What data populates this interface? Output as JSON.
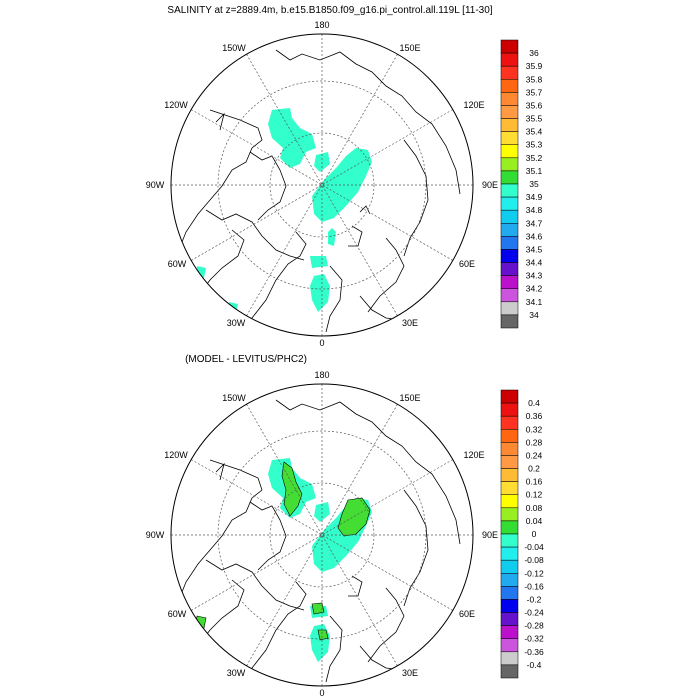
{
  "chart_data": [
    {
      "type": "heatmap",
      "projection": "north-polar-stereographic",
      "title": "SALINITY at z=2889.4m, b.e15.B1850.f09_g16.pi_control.all.119L [11-30]",
      "lon_labels": {
        "180": "180",
        "150E": "150E",
        "120E": "120E",
        "90E": "90E",
        "60E": "60E",
        "30E": "30E",
        "0": "0",
        "30W": "30W",
        "60W": "60W",
        "90W": "90W",
        "120W": "120W",
        "150W": "150W"
      },
      "colorbar": {
        "levels": [
          "36",
          "35.9",
          "35.8",
          "35.7",
          "35.6",
          "35.5",
          "35.4",
          "35.3",
          "35.2",
          "35.1",
          "35",
          "34.9",
          "34.8",
          "34.7",
          "34.6",
          "34.5",
          "34.4",
          "34.3",
          "34.2",
          "34.1",
          "34"
        ],
        "colors": [
          "#cc0000",
          "#ee1111",
          "#ff3322",
          "#ff6611",
          "#ff8833",
          "#ff9944",
          "#ffbb33",
          "#ffdd33",
          "#ffff00",
          "#99ee22",
          "#33dd33",
          "#33ffcc",
          "#22eeee",
          "#11ccee",
          "#22aaee",
          "#2277ee",
          "#0000ee",
          "#6611cc",
          "#bb11cc",
          "#cc55dd",
          "#cccccc",
          "#666666"
        ]
      },
      "field_color": "#33ffcc",
      "field_value_range": [
        34.9,
        35.0
      ]
    },
    {
      "type": "heatmap",
      "projection": "north-polar-stereographic",
      "title": "(MODEL - LEVITUS/PHC2)",
      "lon_labels": {
        "180": "180",
        "150E": "150E",
        "120E": "120E",
        "90E": "90E",
        "60E": "60E",
        "30E": "30E",
        "0": "0",
        "30W": "30W",
        "60W": "60W",
        "90W": "90W",
        "120W": "120W",
        "150W": "150W"
      },
      "colorbar": {
        "levels": [
          "0.4",
          "0.36",
          "0.32",
          "0.28",
          "0.24",
          "0.2",
          "0.16",
          "0.12",
          "0.08",
          "0.04",
          "0",
          "-0.04",
          "-0.08",
          "-0.12",
          "-0.16",
          "-0.2",
          "-0.24",
          "-0.28",
          "-0.32",
          "-0.36",
          "-0.4"
        ],
        "colors": [
          "#cc0000",
          "#ee1111",
          "#ff3322",
          "#ff6611",
          "#ff8833",
          "#ff9944",
          "#ffbb33",
          "#ffdd33",
          "#ffff00",
          "#99ee22",
          "#33dd33",
          "#33ffcc",
          "#22eeee",
          "#11ccee",
          "#22aaee",
          "#2277ee",
          "#0000ee",
          "#6611cc",
          "#bb11cc",
          "#cc55dd",
          "#cccccc",
          "#666666"
        ]
      },
      "field_colors": {
        "negative": "#33ffcc",
        "positive": "#44dd33"
      },
      "field_value_range": [
        -0.04,
        0.04
      ]
    }
  ]
}
